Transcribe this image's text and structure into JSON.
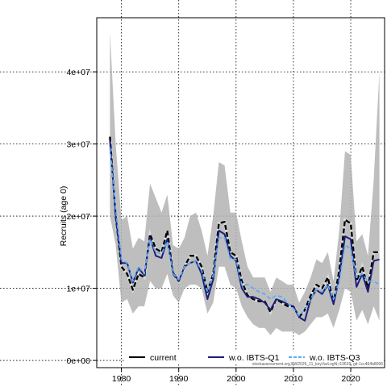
{
  "chart_data": {
    "type": "line",
    "ylabel": "Recruits (age 0)",
    "footnote": "stockassessment.org,BW2026_11_keyVarLogN,r19639, git-1cc464b8096",
    "xlim": [
      1975.7,
      2025.9
    ],
    "ylim": [
      -1000000,
      47500000
    ],
    "x_ticks": [
      1980,
      1990,
      2000,
      2010,
      2020
    ],
    "x_tick_labels": [
      "1980",
      "1990",
      "2000",
      "2010",
      "2020"
    ],
    "y_ticks": [
      0,
      10000000,
      20000000,
      30000000,
      40000000
    ],
    "y_tick_labels": [
      "0e+00",
      "1e+07",
      "2e+07",
      "3e+07",
      "4e+07"
    ],
    "grid": true,
    "legend_position": "bottom",
    "band": {
      "x": [
        1978,
        1979,
        1980,
        1981,
        1982,
        1983,
        1984,
        1985,
        1986,
        1987,
        1988,
        1989,
        1990,
        1991,
        1992,
        1993,
        1994,
        1995,
        1996,
        1997,
        1998,
        1999,
        2000,
        2001,
        2002,
        2003,
        2004,
        2005,
        2006,
        2007,
        2008,
        2009,
        2010,
        2011,
        2012,
        2013,
        2014,
        2015,
        2016,
        2017,
        2018,
        2019,
        2020,
        2021,
        2022,
        2023,
        2024,
        2025
      ],
      "upper": [
        45500000,
        30000000,
        19500000,
        20000000,
        15500000,
        17000000,
        16500000,
        24500000,
        22500000,
        20500000,
        23000000,
        16000000,
        15500000,
        17000000,
        20000000,
        20500000,
        18000000,
        14500000,
        20000000,
        27500000,
        27000000,
        20500000,
        20500000,
        16500000,
        13000000,
        11500000,
        11500000,
        11500000,
        9500000,
        11500000,
        11000000,
        10500000,
        10500000,
        8000000,
        9500000,
        11500000,
        14000000,
        13500000,
        15000000,
        11000000,
        18000000,
        29000000,
        28500000,
        16500000,
        17500000,
        14500000,
        25000000,
        40000000
      ],
      "lower": [
        20000000,
        16000000,
        8000000,
        8500000,
        6500000,
        7500000,
        7500000,
        11000000,
        10000000,
        10000000,
        12000000,
        9000000,
        8000000,
        10000000,
        10500000,
        10500000,
        10000000,
        6500000,
        8000000,
        13000000,
        13000000,
        10500000,
        10000000,
        7500000,
        6000000,
        5000000,
        4500000,
        4500000,
        3500000,
        4500000,
        4000000,
        4000000,
        4000000,
        3500000,
        4000000,
        5000000,
        6000000,
        6000000,
        6500000,
        4500000,
        7000000,
        10000000,
        9500000,
        5500000,
        7000000,
        5000000,
        7500000,
        5500000
      ]
    },
    "series": [
      {
        "name": "current",
        "color": "#000000",
        "dashed": false,
        "x": [
          1978,
          1979,
          1980,
          1981,
          1982,
          1983,
          1984,
          1985,
          1986,
          1987,
          1988,
          1989,
          1990,
          1991,
          1992,
          1993,
          1994,
          1995,
          1996,
          1997,
          1998,
          1999,
          2000,
          2001,
          2002,
          2003,
          2004,
          2005,
          2006,
          2007,
          2008,
          2009,
          2010,
          2011,
          2012,
          2013,
          2014,
          2015,
          2016,
          2017,
          2018,
          2019,
          2020,
          2021,
          2022,
          2023,
          2024,
          2025
        ],
        "values": [
          31000000,
          20000000,
          13000000,
          12000000,
          9800000,
          12000000,
          11500000,
          17500000,
          15500000,
          15000000,
          18000000,
          12000000,
          11000000,
          13000000,
          14500000,
          14500000,
          13000000,
          9500000,
          12000000,
          19000000,
          19200000,
          15000000,
          14500000,
          11000000,
          9000000,
          8500000,
          8200000,
          8200000,
          6700000,
          8500000,
          8000000,
          7500000,
          7500000,
          6000000,
          7000000,
          9000000,
          10500000,
          10000000,
          11500000,
          8000000,
          12500000,
          19500000,
          19000000,
          11000000,
          13000000,
          10000000,
          15000000,
          15000000
        ]
      },
      {
        "name": "w.o. IBTS-Q1",
        "color": "#1f1f7a",
        "dashed": false,
        "x": [
          1978,
          1979,
          1980,
          1981,
          1982,
          1983,
          1984,
          1985,
          1986,
          1987,
          1988,
          1989,
          1990,
          1991,
          1992,
          1993,
          1994,
          1995,
          1996,
          1997,
          1998,
          1999,
          2000,
          2001,
          2002,
          2003,
          2004,
          2005,
          2006,
          2007,
          2008,
          2009,
          2010,
          2011,
          2012,
          2013,
          2014,
          2015,
          2016,
          2017,
          2018,
          2019,
          2020,
          2021,
          2022,
          2023,
          2024,
          2025
        ],
        "values": [
          30500000,
          20000000,
          13500000,
          13500000,
          10800000,
          12800000,
          11800000,
          17000000,
          14500000,
          14200000,
          16800000,
          12200000,
          11000000,
          13000000,
          13500000,
          13800000,
          12000000,
          8500000,
          11200000,
          18000000,
          17500000,
          14500000,
          13800000,
          10000000,
          8800000,
          8800000,
          8500000,
          8000000,
          7000000,
          8500000,
          8200000,
          7800000,
          7500000,
          6000000,
          5500000,
          8500000,
          9800000,
          9200000,
          10500000,
          7800000,
          11500000,
          17200000,
          16800000,
          10200000,
          12000000,
          9500000,
          13800000,
          14000000
        ]
      },
      {
        "name": "w.o. IBTS-Q3",
        "color": "#5aaef0",
        "dashed": true,
        "x": [
          1978,
          1979,
          1980,
          1981,
          1982,
          1983,
          1984,
          1985,
          1986,
          1987,
          1988,
          1989,
          1990,
          1991,
          1992,
          1993,
          1994,
          1995,
          1996,
          1997,
          1998,
          1999,
          2000,
          2001,
          2002,
          2003,
          2004,
          2005,
          2006,
          2007,
          2008,
          2009,
          2010,
          2011,
          2012,
          2013,
          2014,
          2015,
          2016,
          2017,
          2018,
          2019,
          2020,
          2021,
          2022,
          2023,
          2024,
          2025
        ],
        "values": [
          29500000,
          21000000,
          14000000,
          13500000,
          11000000,
          13000000,
          12000000,
          16800000,
          15000000,
          14800000,
          16500000,
          12000000,
          11200000,
          13000000,
          13500000,
          13800000,
          12500000,
          9500000,
          11800000,
          17000000,
          17000000,
          14000000,
          14000000,
          10500000,
          10500000,
          10000000,
          9500000,
          9200000,
          8500000,
          9000000,
          8800000,
          8000000,
          7200000,
          6200000,
          7000000,
          8500000,
          9800000,
          9500000,
          10500000,
          8500000,
          11000000,
          16000000,
          15500000,
          11500000,
          12000000,
          11000000,
          11000000,
          10500000
        ]
      }
    ]
  }
}
